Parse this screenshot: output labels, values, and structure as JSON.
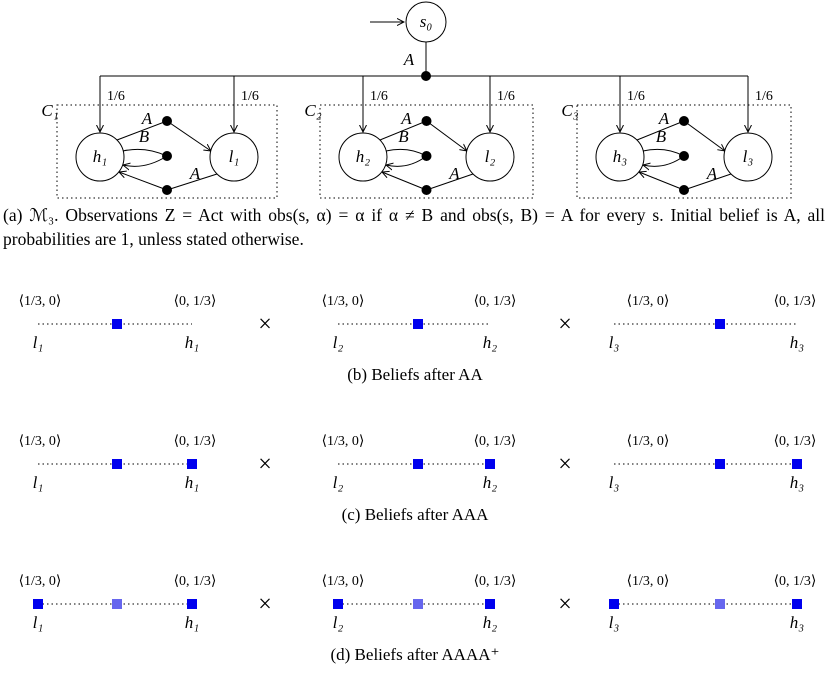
{
  "diagram": {
    "start_node": "s₀",
    "start_edge_label": "A",
    "branch_probabilities": [
      "1/6",
      "1/6",
      "1/6",
      "1/6",
      "1/6",
      "1/6"
    ],
    "clusters": [
      {
        "label": "C₁",
        "h": "h₁",
        "l": "l₁",
        "edge_labels": [
          "A",
          "B",
          "A"
        ]
      },
      {
        "label": "C₂",
        "h": "h₂",
        "l": "l₂",
        "edge_labels": [
          "A",
          "B",
          "A"
        ]
      },
      {
        "label": "C₃",
        "h": "h₃",
        "l": "l₃",
        "edge_labels": [
          "A",
          "B",
          "A"
        ]
      }
    ]
  },
  "caption_a": "(a) ℳ₃. Observations Z = Act with obs(s, α) = α if α ≠ B and obs(s, B) = A for every s. Initial belief is A, all probabilities are 1, unless stated otherwise.",
  "belief_rows": [
    {
      "caption": "(b) Beliefs after AA",
      "separators": [
        "×",
        "×"
      ],
      "panels": [
        {
          "left_value": "⟨1/3, 0⟩",
          "right_value": "⟨0, 1/3⟩",
          "left_state": "l₁",
          "right_state": "h₁"
        },
        {
          "left_value": "⟨1/3, 0⟩",
          "right_value": "⟨0, 1/3⟩",
          "left_state": "l₂",
          "right_state": "h₂"
        },
        {
          "left_value": "⟨1/3, 0⟩",
          "right_value": "⟨0, 1/3⟩",
          "left_state": "l₃",
          "right_state": "h₃"
        }
      ]
    },
    {
      "caption": "(c) Beliefs after AAA",
      "separators": [
        "×",
        "×"
      ],
      "panels": [
        {
          "left_value": "⟨1/3, 0⟩",
          "right_value": "⟨0, 1/3⟩",
          "left_state": "l₁",
          "right_state": "h₁"
        },
        {
          "left_value": "⟨1/3, 0⟩",
          "right_value": "⟨0, 1/3⟩",
          "left_state": "l₂",
          "right_state": "h₂"
        },
        {
          "left_value": "⟨1/3, 0⟩",
          "right_value": "⟨0, 1/3⟩",
          "left_state": "l₃",
          "right_state": "h₃"
        }
      ]
    },
    {
      "caption": "(d) Beliefs after AAAA⁺",
      "separators": [
        "×",
        "×"
      ],
      "panels": [
        {
          "left_value": "⟨1/3, 0⟩",
          "right_value": "⟨0, 1/3⟩",
          "left_state": "l₁",
          "right_state": "h₁"
        },
        {
          "left_value": "⟨1/3, 0⟩",
          "right_value": "⟨0, 1/3⟩",
          "left_state": "l₂",
          "right_state": "h₂"
        },
        {
          "left_value": "⟨1/3, 0⟩",
          "right_value": "⟨0, 1/3⟩",
          "left_state": "l₃",
          "right_state": "h₃"
        }
      ]
    }
  ]
}
